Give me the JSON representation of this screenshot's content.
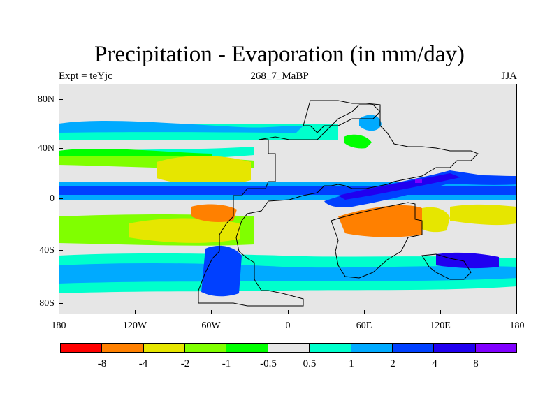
{
  "title": "Precipitation - Evaporation (in mm/day)",
  "subtitle_left": "Expt = teYjc",
  "subtitle_center": "268_7_MaBP",
  "subtitle_right": "JJA",
  "lat_labels": [
    "80N",
    "40N",
    "0",
    "40S",
    "80S"
  ],
  "lon_labels": [
    "180",
    "120W",
    "60W",
    "0",
    "60E",
    "120E",
    "180"
  ],
  "colorbar": {
    "colors": [
      "#ff0000",
      "#ff8000",
      "#e6e600",
      "#80ff00",
      "#00ff00",
      "#e6e6e6",
      "#00ffcc",
      "#00aaff",
      "#0040ff",
      "#2000f0",
      "#8000ff"
    ],
    "labels": [
      "-8",
      "-4",
      "-2",
      "-1",
      "-0.5",
      "0.5",
      "1",
      "2",
      "4",
      "8"
    ]
  },
  "background_color": "#e6e6e6"
}
